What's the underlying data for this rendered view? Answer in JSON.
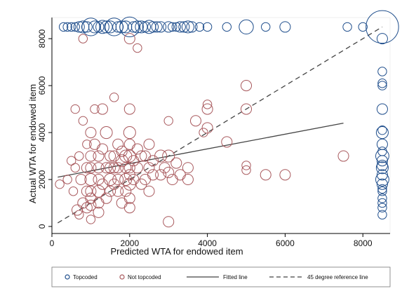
{
  "chart_data": {
    "type": "scatter",
    "xlabel": "Predicted WTA for endowed item",
    "ylabel": "Actual WTA for endowed item",
    "xlim": [
      0,
      8700
    ],
    "ylim": [
      -300,
      8900
    ],
    "xticks": [
      0,
      2000,
      4000,
      6000,
      8000
    ],
    "yticks": [
      0,
      2000,
      4000,
      6000,
      8000
    ],
    "grid": false,
    "legend_position": "bottom",
    "series": [
      {
        "name": "Topcoded",
        "marker": "hollow-circle",
        "color": "#1f4e8c",
        "points": [
          [
            300,
            8500,
            1
          ],
          [
            400,
            8500,
            1
          ],
          [
            500,
            8500,
            1
          ],
          [
            600,
            8500,
            1
          ],
          [
            700,
            8500,
            2
          ],
          [
            800,
            8500,
            3
          ],
          [
            900,
            8500,
            2
          ],
          [
            1000,
            8500,
            9
          ],
          [
            1100,
            8500,
            3
          ],
          [
            1200,
            8500,
            2
          ],
          [
            1300,
            8500,
            4
          ],
          [
            1400,
            8500,
            3
          ],
          [
            1500,
            8500,
            3
          ],
          [
            1600,
            8500,
            9
          ],
          [
            1700,
            8500,
            2
          ],
          [
            1800,
            8500,
            3
          ],
          [
            1900,
            8500,
            3
          ],
          [
            2000,
            8500,
            12
          ],
          [
            2100,
            8500,
            2
          ],
          [
            2200,
            8500,
            3
          ],
          [
            2300,
            8500,
            3
          ],
          [
            2400,
            8500,
            2
          ],
          [
            2500,
            8500,
            4
          ],
          [
            2600,
            8500,
            2
          ],
          [
            2700,
            8500,
            2
          ],
          [
            2800,
            8500,
            2
          ],
          [
            3000,
            8500,
            2
          ],
          [
            3100,
            8500,
            1
          ],
          [
            3200,
            8500,
            1
          ],
          [
            3300,
            8500,
            2
          ],
          [
            3400,
            8500,
            2
          ],
          [
            3500,
            8500,
            3
          ],
          [
            3600,
            8500,
            2
          ],
          [
            3800,
            8500,
            1
          ],
          [
            4000,
            8500,
            1
          ],
          [
            4500,
            8500,
            1
          ],
          [
            5000,
            8500,
            5
          ],
          [
            5500,
            8500,
            1
          ],
          [
            6000,
            8500,
            2
          ],
          [
            7600,
            8500,
            1
          ],
          [
            8000,
            8500,
            1
          ],
          [
            8500,
            8500,
            40
          ],
          [
            8500,
            8000,
            2
          ],
          [
            8500,
            6600,
            1
          ],
          [
            8500,
            6100,
            1
          ],
          [
            8500,
            6000,
            1
          ],
          [
            8500,
            5000,
            2
          ],
          [
            8500,
            4100,
            1
          ],
          [
            8500,
            4000,
            3
          ],
          [
            8500,
            3500,
            2
          ],
          [
            8500,
            3200,
            1
          ],
          [
            8500,
            3000,
            4
          ],
          [
            8500,
            2800,
            2
          ],
          [
            8500,
            2600,
            2
          ],
          [
            8500,
            2500,
            3
          ],
          [
            8500,
            2200,
            2
          ],
          [
            8500,
            2000,
            4
          ],
          [
            8500,
            1800,
            2
          ],
          [
            8500,
            1600,
            1
          ],
          [
            8500,
            1500,
            1
          ],
          [
            8500,
            1200,
            1
          ],
          [
            8500,
            1000,
            1
          ],
          [
            8500,
            800,
            1
          ],
          [
            8500,
            500,
            1
          ]
        ]
      },
      {
        "name": "Not topcoded",
        "marker": "hollow-circle",
        "color": "#a8585c",
        "points": [
          [
            200,
            1800,
            1
          ],
          [
            400,
            2000,
            1
          ],
          [
            500,
            2800,
            1
          ],
          [
            550,
            1500,
            1
          ],
          [
            600,
            2500,
            1
          ],
          [
            600,
            5000,
            1
          ],
          [
            650,
            700,
            2
          ],
          [
            700,
            500,
            1
          ],
          [
            700,
            3000,
            1
          ],
          [
            750,
            2000,
            2
          ],
          [
            800,
            1000,
            2
          ],
          [
            800,
            4500,
            1
          ],
          [
            800,
            8000,
            1
          ],
          [
            900,
            800,
            2
          ],
          [
            900,
            1500,
            2
          ],
          [
            900,
            2500,
            2
          ],
          [
            900,
            3500,
            1
          ],
          [
            1000,
            300,
            1
          ],
          [
            1000,
            900,
            2
          ],
          [
            1000,
            1200,
            2
          ],
          [
            1000,
            1500,
            2
          ],
          [
            1000,
            2000,
            3
          ],
          [
            1000,
            2500,
            2
          ],
          [
            1000,
            3000,
            2
          ],
          [
            1000,
            4000,
            2
          ],
          [
            1100,
            3500,
            2
          ],
          [
            1100,
            5000,
            1
          ],
          [
            1200,
            600,
            2
          ],
          [
            1200,
            1000,
            2
          ],
          [
            1200,
            1500,
            3
          ],
          [
            1200,
            2000,
            2
          ],
          [
            1200,
            2500,
            2
          ],
          [
            1200,
            3000,
            2
          ],
          [
            1300,
            1800,
            2
          ],
          [
            1300,
            3300,
            2
          ],
          [
            1300,
            5000,
            2
          ],
          [
            1400,
            1200,
            2
          ],
          [
            1400,
            2500,
            2
          ],
          [
            1400,
            4000,
            3
          ],
          [
            1500,
            1500,
            2
          ],
          [
            1500,
            2000,
            3
          ],
          [
            1500,
            2500,
            2
          ],
          [
            1500,
            3000,
            2
          ],
          [
            1600,
            1800,
            2
          ],
          [
            1600,
            2500,
            2
          ],
          [
            1600,
            3000,
            2
          ],
          [
            1600,
            5500,
            1
          ],
          [
            1700,
            1500,
            2
          ],
          [
            1700,
            2000,
            2
          ],
          [
            1700,
            2500,
            2
          ],
          [
            1700,
            3500,
            2
          ],
          [
            1800,
            1000,
            2
          ],
          [
            1800,
            2800,
            3
          ],
          [
            1800,
            3200,
            2
          ],
          [
            1900,
            1500,
            2
          ],
          [
            1900,
            2000,
            3
          ],
          [
            1900,
            2500,
            2
          ],
          [
            1900,
            3000,
            3
          ],
          [
            2000,
            800,
            2
          ],
          [
            2000,
            1200,
            2
          ],
          [
            2000,
            1800,
            3
          ],
          [
            2000,
            2200,
            2
          ],
          [
            2000,
            2500,
            2
          ],
          [
            2000,
            3000,
            3
          ],
          [
            2000,
            3500,
            2
          ],
          [
            2000,
            4000,
            3
          ],
          [
            2000,
            5000,
            2
          ],
          [
            2000,
            8000,
            2
          ],
          [
            2100,
            2000,
            2
          ],
          [
            2100,
            2800,
            2
          ],
          [
            2200,
            2500,
            2
          ],
          [
            2200,
            3300,
            2
          ],
          [
            2200,
            7600,
            1
          ],
          [
            2300,
            1800,
            2
          ],
          [
            2300,
            3000,
            2
          ],
          [
            2400,
            2000,
            2
          ],
          [
            2400,
            3000,
            2
          ],
          [
            2500,
            1500,
            2
          ],
          [
            2500,
            2500,
            2
          ],
          [
            2500,
            3500,
            2
          ],
          [
            2600,
            2200,
            2
          ],
          [
            2600,
            2800,
            2
          ],
          [
            2800,
            2200,
            2
          ],
          [
            2800,
            3000,
            3
          ],
          [
            2900,
            2500,
            2
          ],
          [
            3000,
            200,
            2
          ],
          [
            3000,
            2300,
            2
          ],
          [
            3000,
            3000,
            3
          ],
          [
            3000,
            4500,
            1
          ],
          [
            3100,
            2000,
            2
          ],
          [
            3200,
            2700,
            2
          ],
          [
            3300,
            2200,
            2
          ],
          [
            3500,
            2000,
            2
          ],
          [
            3500,
            2500,
            2
          ],
          [
            3700,
            4500,
            2
          ],
          [
            3900,
            4000,
            1
          ],
          [
            4000,
            4200,
            2
          ],
          [
            4000,
            5000,
            2
          ],
          [
            4000,
            5200,
            1
          ],
          [
            4500,
            3600,
            2
          ],
          [
            5000,
            2400,
            1
          ],
          [
            5000,
            2600,
            1
          ],
          [
            5000,
            5000,
            2
          ],
          [
            5000,
            6000,
            2
          ],
          [
            5500,
            2200,
            2
          ],
          [
            6000,
            2200,
            2
          ],
          [
            7500,
            3000,
            2
          ]
        ]
      }
    ],
    "lines": [
      {
        "name": "Fitted line",
        "style": "solid",
        "color": "#444444",
        "points": [
          [
            150,
            2100
          ],
          [
            7500,
            4400
          ]
        ]
      },
      {
        "name": "45 degree reference line",
        "style": "dashed",
        "color": "#444444",
        "points": [
          [
            150,
            150
          ],
          [
            8500,
            8500
          ]
        ]
      }
    ]
  }
}
